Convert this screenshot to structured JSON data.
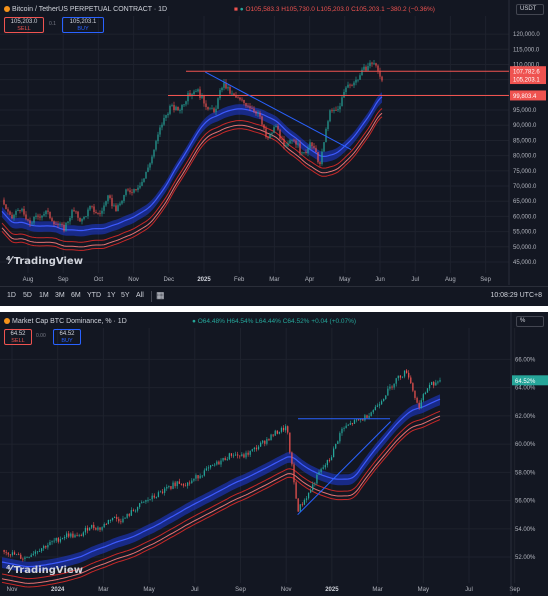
{
  "chart_data": [
    {
      "type": "candlestick",
      "title": "Bitcoin / TetherUS PERPETUAL CONTRACT · 1D",
      "ohlc": {
        "o": "O105,583.3",
        "h": "H105,730.0",
        "l": "L105,203.0",
        "c": "C105,203.1",
        "chg": "−380.2 (−0.36%)"
      },
      "sell": {
        "price": "105,203.0",
        "label": "SELL"
      },
      "buy": {
        "price": "105,203.1",
        "label": "BUY"
      },
      "spread": "0.1",
      "unit": "USDT",
      "x_ticks": [
        "Aug",
        "Sep",
        "Oct",
        "Nov",
        "Dec",
        "2025",
        "Feb",
        "Mar",
        "Apr",
        "May",
        "Jun",
        "Jul",
        "Aug",
        "Sep"
      ],
      "y_ticks": [
        "120,000.0",
        "115,000.0",
        "110,000.0",
        "105,000.0",
        "100,000.0",
        "95,000.0",
        "90,000.0",
        "85,000.0",
        "80,000.0",
        "75,000.0",
        "70,000.0",
        "65,000.0",
        "60,000.0",
        "55,000.0",
        "50,000.0",
        "45,000.0"
      ],
      "ylim": [
        45000,
        122000
      ],
      "price_labels": [
        "107,782.6",
        "105,203.1",
        "99,803.4"
      ],
      "series": [
        {
          "kind": "close",
          "x": [
            0,
            1,
            2,
            3,
            4,
            5,
            6,
            7,
            8,
            9,
            10,
            11,
            12,
            13,
            14,
            15,
            16,
            17,
            18,
            19,
            20,
            21,
            22,
            23,
            24,
            25,
            26,
            27,
            28,
            29,
            30,
            31,
            32,
            33,
            34,
            35,
            36,
            37,
            38,
            39,
            40,
            41,
            42,
            43
          ],
          "values": [
            65500,
            59000,
            63000,
            57500,
            60000,
            61500,
            58000,
            56000,
            62000,
            58500,
            63000,
            60500,
            66000,
            62000,
            68000,
            69000,
            72000,
            80000,
            90000,
            96000,
            95000,
            99500,
            102000,
            97000,
            94000,
            104000,
            100000,
            98000,
            96500,
            94000,
            85000,
            90000,
            82000,
            86000,
            80000,
            84000,
            77000,
            94000,
            95000,
            103000,
            104500,
            108500,
            111000,
            105203
          ]
        }
      ],
      "levels": [
        {
          "name": "resistance",
          "value": 107782.6
        },
        {
          "name": "support",
          "value": 99803.4
        }
      ],
      "trendline": {
        "from": [
          23,
          107500
        ],
        "to": [
          39.5,
          82000
        ]
      },
      "footer": "TradingView"
    },
    {
      "type": "candlestick",
      "title": "Market Cap BTC Dominance, % · 1D",
      "ohlc": {
        "o": "O64.48%",
        "h": "H64.54%",
        "l": "L64.44%",
        "c": "C64.52%",
        "chg": "+0.04 (+0.07%)"
      },
      "sell": {
        "price": "64.52",
        "label": "SELL"
      },
      "buy": {
        "price": "64.52",
        "label": "BUY"
      },
      "spread": "0.00",
      "unit": "%",
      "x_ticks": [
        "Nov",
        "2024",
        "Mar",
        "May",
        "Jul",
        "Sep",
        "Nov",
        "2025",
        "Mar",
        "May",
        "Jul",
        "Sep"
      ],
      "y_ticks": [
        "66.00%",
        "64.00%",
        "62.00%",
        "60.00%",
        "58.00%",
        "56.00%",
        "54.00%",
        "52.00%"
      ],
      "ylim": [
        50.8,
        67.8
      ],
      "price_labels": [
        "64.52%"
      ],
      "series": [
        {
          "kind": "close",
          "x": [
            0,
            1,
            2,
            3,
            4,
            5,
            6,
            7,
            8,
            9,
            10,
            11,
            12,
            13,
            14,
            15,
            16,
            17,
            18,
            19,
            20,
            21,
            22,
            23,
            24,
            25,
            26,
            27,
            28,
            29,
            30,
            31,
            32,
            33,
            34,
            35,
            36,
            37,
            38,
            39,
            40
          ],
          "values": [
            52.5,
            52.2,
            51.9,
            52.4,
            52.8,
            53.2,
            53.6,
            53.4,
            54.2,
            54.0,
            54.8,
            54.6,
            55.3,
            55.9,
            56.3,
            56.8,
            57.3,
            57.2,
            57.8,
            58.3,
            58.8,
            59.3,
            59.1,
            59.6,
            60.2,
            60.8,
            61.2,
            55.3,
            56.5,
            58.0,
            59.0,
            61.0,
            61.5,
            61.8,
            62.5,
            63.5,
            64.6,
            65.2,
            62.6,
            64.2,
            64.52
          ]
        }
      ],
      "levels": [
        {
          "name": "horizontal-resistance",
          "value": 61.8
        }
      ],
      "trendline": {
        "from": [
          27,
          55.0
        ],
        "to": [
          35.5,
          61.6
        ]
      },
      "footer": "TradingView"
    }
  ],
  "bottom_bar": {
    "ranges": [
      "1D",
      "5D",
      "1M",
      "3M",
      "6M",
      "YTD",
      "1Y",
      "5Y",
      "All"
    ],
    "calendar_icon": "calendar-icon",
    "time": "10:08:29 UTC+8"
  },
  "colors": {
    "bg": "#131722",
    "up": "#26a69a",
    "down": "#ef5350",
    "level": "#ef5350",
    "trend": "#2962ff",
    "band_blue": "#1e3ad8",
    "band_red": "#c62828"
  }
}
